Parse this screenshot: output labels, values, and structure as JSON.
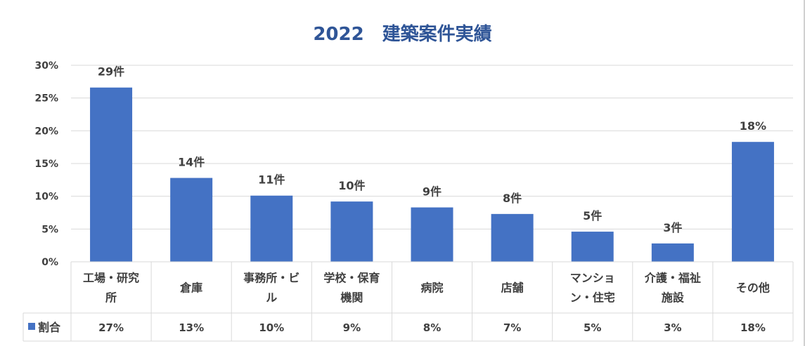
{
  "chart_data": {
    "type": "bar",
    "title": "2022　建築案件実績",
    "categories": [
      [
        "工場・研究",
        "所"
      ],
      [
        "倉庫"
      ],
      [
        "事務所・ビ",
        "ル"
      ],
      [
        "学校・保育",
        "機関"
      ],
      [
        "病院"
      ],
      [
        "店舗"
      ],
      [
        "マンショ",
        "ン・住宅"
      ],
      [
        "介護・福祉",
        "施設"
      ],
      [
        "その他"
      ]
    ],
    "series": [
      {
        "name": "割合",
        "values": [
          26.6,
          12.8,
          10.1,
          9.2,
          8.3,
          7.3,
          4.6,
          2.8,
          18.3
        ],
        "table_labels": [
          "27%",
          "13%",
          "10%",
          "9%",
          "8%",
          "7%",
          "5%",
          "3%",
          "18%"
        ]
      }
    ],
    "data_labels": [
      "29件",
      "14件",
      "11件",
      "10件",
      "9件",
      "8件",
      "5件",
      "3件",
      "18%"
    ],
    "ylim": [
      0,
      30
    ],
    "yticks": [
      "0%",
      "5%",
      "10%",
      "15%",
      "20%",
      "25%",
      "30%"
    ],
    "ytick_values": [
      0,
      5,
      10,
      15,
      20,
      25,
      30
    ],
    "gridlines": true,
    "data_table": true,
    "bar_color": "#4472C4"
  }
}
